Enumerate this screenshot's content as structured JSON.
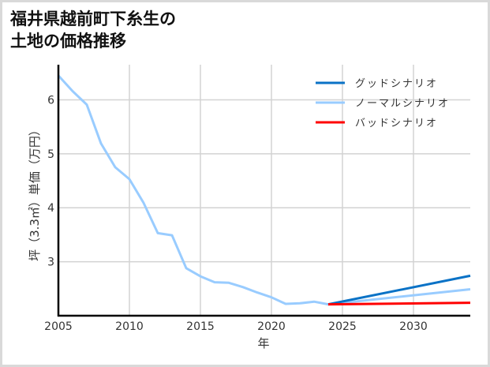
{
  "title": {
    "line1": "福井県越前町下糸生の",
    "line2": "土地の価格推移"
  },
  "colors": {
    "good": "#0a72c6",
    "normal": "#99ccff",
    "bad": "#ff0000",
    "grid": "#d3d3d3",
    "axis": "#000000",
    "frame": "#d9d9d9"
  },
  "chart_data": {
    "type": "line",
    "title": "福井県越前町下糸生の土地の価格推移",
    "xlabel": "年",
    "ylabel": "坪（3.3㎡）単価（万円）",
    "xlim": [
      2005,
      2034
    ],
    "ylim": [
      2.0,
      6.65
    ],
    "xticks": [
      2005,
      2010,
      2015,
      2020,
      2025,
      2030
    ],
    "yticks": [
      3,
      4,
      5,
      6
    ],
    "grid": true,
    "legend_position": "upper right",
    "legend": [
      "グッドシナリオ",
      "ノーマルシナリオ",
      "バッドシナリオ"
    ],
    "series": [
      {
        "name": "ノーマルシナリオ",
        "color": "#99ccff",
        "x": [
          2005,
          2006,
          2007,
          2008,
          2009,
          2010,
          2011,
          2012,
          2013,
          2014,
          2015,
          2016,
          2017,
          2018,
          2019,
          2020,
          2021,
          2022,
          2023,
          2024,
          2034
        ],
        "values": [
          6.45,
          6.16,
          5.91,
          5.19,
          4.75,
          4.53,
          4.09,
          3.53,
          3.49,
          2.88,
          2.73,
          2.62,
          2.61,
          2.53,
          2.43,
          2.34,
          2.22,
          2.23,
          2.26,
          2.21,
          2.49
        ]
      },
      {
        "name": "グッドシナリオ",
        "color": "#0a72c6",
        "x": [
          2024,
          2034
        ],
        "values": [
          2.21,
          2.74
        ]
      },
      {
        "name": "バッドシナリオ",
        "color": "#ff0000",
        "x": [
          2024,
          2034
        ],
        "values": [
          2.21,
          2.24
        ]
      }
    ]
  }
}
